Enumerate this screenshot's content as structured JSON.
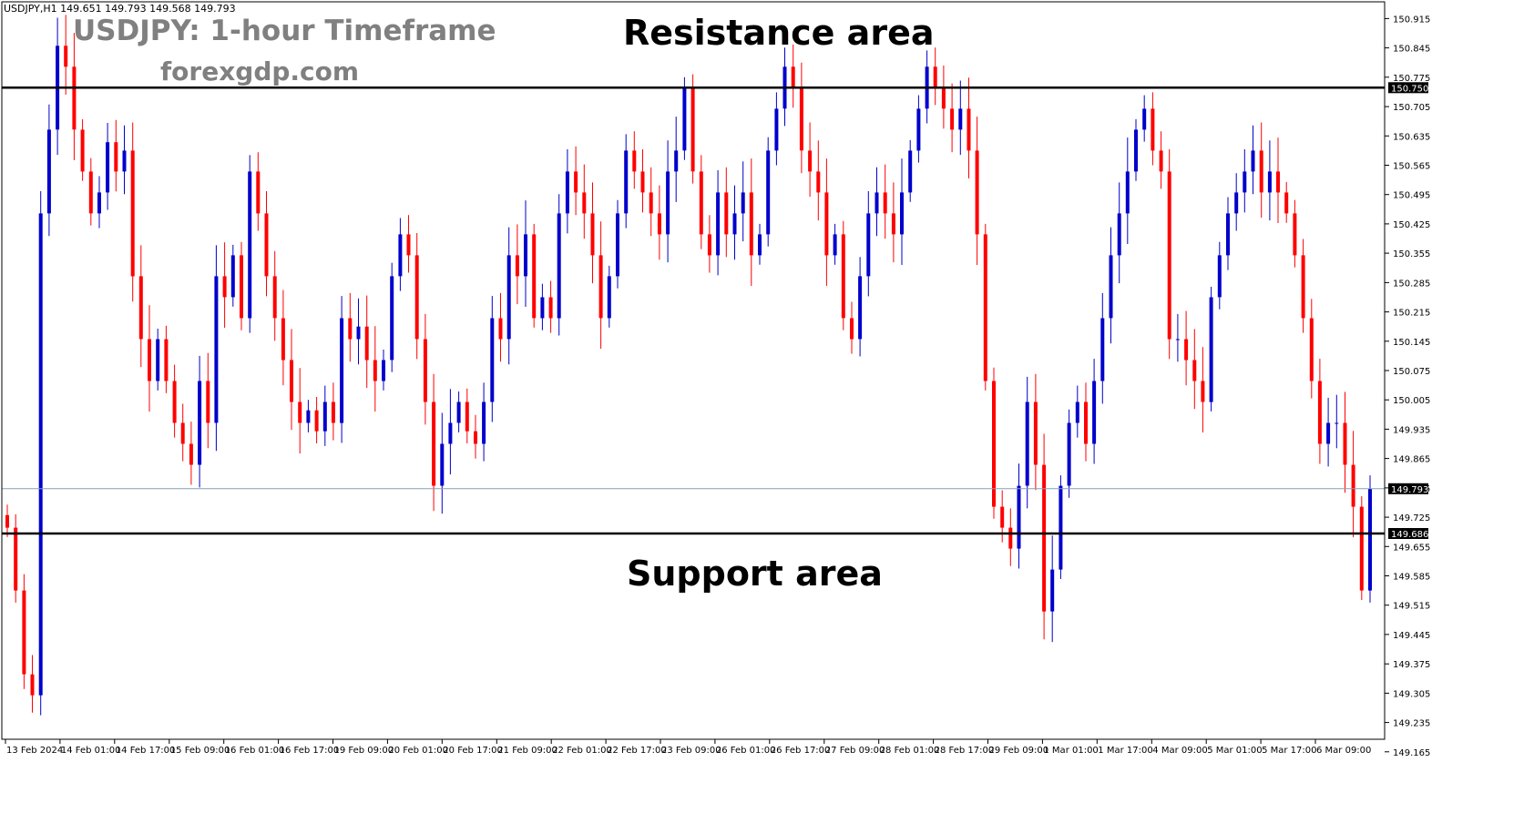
{
  "header": {
    "symbol_info": "USDJPY,H1  149.651 149.793 149.568 149.793",
    "title": "USDJPY: 1-hour Timeframe",
    "subtitle": "forexgdp.com"
  },
  "annotations": {
    "resistance_label": "Resistance area",
    "support_label": "Support area"
  },
  "chart_data": {
    "type": "candlestick",
    "symbol": "USDJPY",
    "timeframe": "H1",
    "ylim": [
      149.195,
      150.955
    ],
    "y_ticks": [
      "150.915",
      "150.845",
      "150.775",
      "150.705",
      "150.635",
      "150.565",
      "150.495",
      "150.425",
      "150.355",
      "150.285",
      "150.215",
      "150.145",
      "150.075",
      "150.005",
      "149.935",
      "149.865",
      "149.795",
      "149.725",
      "149.655",
      "149.585",
      "149.515",
      "149.445",
      "149.375",
      "149.305",
      "149.235",
      "149.165"
    ],
    "x_ticks": [
      "13 Feb 2024",
      "14 Feb 01:00",
      "14 Feb 17:00",
      "15 Feb 09:00",
      "16 Feb 01:00",
      "16 Feb 17:00",
      "19 Feb 09:00",
      "20 Feb 01:00",
      "20 Feb 17:00",
      "21 Feb 09:00",
      "22 Feb 01:00",
      "22 Feb 17:00",
      "23 Feb 09:00",
      "26 Feb 01:00",
      "26 Feb 17:00",
      "27 Feb 09:00",
      "28 Feb 01:00",
      "28 Feb 17:00",
      "29 Feb 09:00",
      "1 Mar 01:00",
      "1 Mar 17:00",
      "4 Mar 09:00",
      "5 Mar 01:00",
      "5 Mar 17:00",
      "6 Mar 09:00"
    ],
    "levels": [
      {
        "name": "resistance",
        "value": 150.75,
        "label": "150.750"
      },
      {
        "name": "support",
        "value": 149.686,
        "label": "149.686"
      }
    ],
    "current_price": {
      "value": 149.793,
      "label": "149.793"
    },
    "colors": {
      "up": "#0000cc",
      "down": "#ff0000",
      "level": "#000000",
      "current": "#8a9fb5",
      "axis": "#000000"
    },
    "grid": false,
    "closes": [
      149.7,
      149.55,
      149.35,
      149.3,
      150.45,
      150.65,
      150.85,
      150.8,
      150.65,
      150.55,
      150.45,
      150.5,
      150.62,
      150.55,
      150.6,
      150.3,
      150.15,
      150.05,
      150.15,
      150.05,
      149.95,
      149.9,
      149.85,
      150.05,
      149.95,
      150.3,
      150.25,
      150.35,
      150.2,
      150.55,
      150.45,
      150.3,
      150.2,
      150.1,
      150.0,
      149.95,
      149.98,
      149.93,
      150.0,
      149.95,
      150.2,
      150.15,
      150.18,
      150.1,
      150.05,
      150.1,
      150.3,
      150.4,
      150.35,
      150.15,
      150.0,
      149.8,
      149.9,
      149.95,
      150.0,
      149.93,
      149.9,
      150.0,
      150.2,
      150.15,
      150.35,
      150.3,
      150.4,
      150.2,
      150.25,
      150.2,
      150.45,
      150.55,
      150.5,
      150.45,
      150.35,
      150.2,
      150.3,
      150.45,
      150.6,
      150.55,
      150.5,
      150.45,
      150.4,
      150.55,
      150.6,
      150.75,
      150.55,
      150.4,
      150.35,
      150.5,
      150.4,
      150.45,
      150.5,
      150.35,
      150.4,
      150.6,
      150.7,
      150.8,
      150.75,
      150.6,
      150.55,
      150.5,
      150.35,
      150.4,
      150.2,
      150.15,
      150.3,
      150.45,
      150.5,
      150.45,
      150.4,
      150.5,
      150.6,
      150.7,
      150.8,
      150.75,
      150.7,
      150.65,
      150.7,
      150.6,
      150.4,
      150.05,
      149.75,
      149.7,
      149.65,
      149.8,
      150.0,
      149.85,
      149.5,
      149.6,
      149.8,
      149.95,
      150.0,
      149.9,
      150.05,
      150.2,
      150.35,
      150.45,
      150.55,
      150.65,
      150.7,
      150.6,
      150.55,
      150.15,
      150.15,
      150.1,
      150.05,
      150.0,
      150.25,
      150.35,
      150.45,
      150.5,
      150.55,
      150.6,
      150.5,
      150.55,
      150.5,
      150.45,
      150.35,
      150.2,
      150.05,
      149.9,
      149.95,
      149.95,
      149.85,
      149.75,
      149.55,
      149.793
    ]
  }
}
